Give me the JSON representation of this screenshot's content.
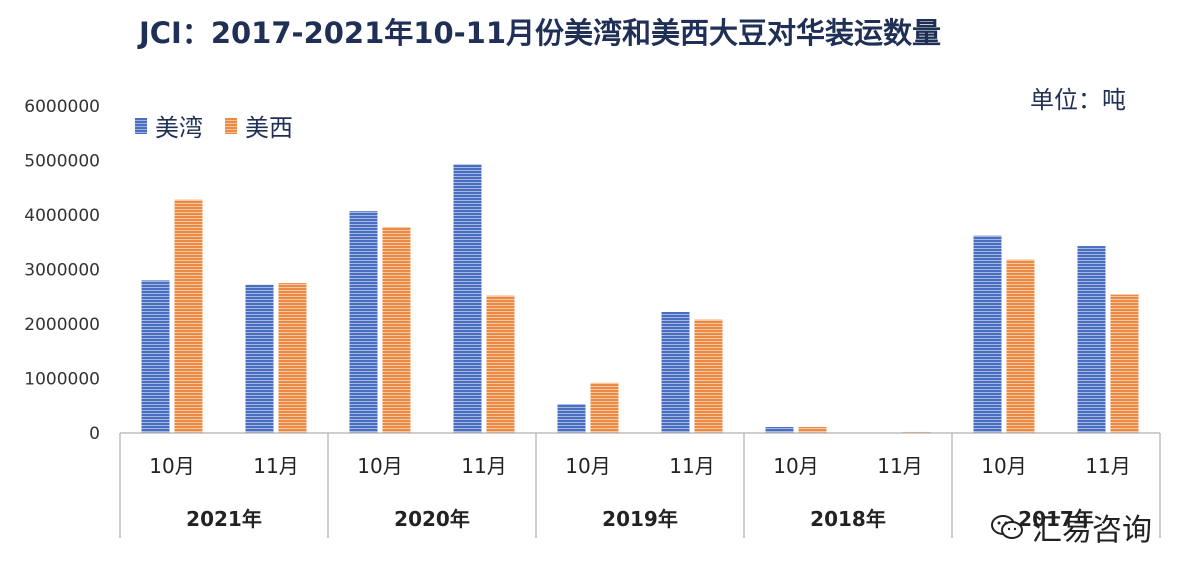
{
  "chart_data": {
    "type": "bar",
    "title": "JCI：2017-2021年10-11月份美湾和美西大豆对华装运数量",
    "unit": "单位：吨",
    "yticks": [
      "6000000",
      "5000000",
      "4000000",
      "3000000",
      "2000000",
      "1000000",
      "0"
    ],
    "ylim": [
      0,
      6000000
    ],
    "groups": [
      {
        "label": "2021年",
        "categories": [
          "10月",
          "11月"
        ]
      },
      {
        "label": "2020年",
        "categories": [
          "10月",
          "11月"
        ]
      },
      {
        "label": "2019年",
        "categories": [
          "10月",
          "11月"
        ]
      },
      {
        "label": "2018年",
        "categories": [
          "10月",
          "11月"
        ]
      },
      {
        "label": "2017年",
        "categories": [
          "10月",
          "11月"
        ]
      }
    ],
    "series": [
      {
        "name": "美湾",
        "color": "#4a6fc0",
        "values": [
          2800000,
          2720000,
          4070000,
          4930000,
          530000,
          2220000,
          110000,
          0,
          3620000,
          3430000
        ]
      },
      {
        "name": "美西",
        "color": "#ea8a45",
        "values": [
          4280000,
          2750000,
          3780000,
          2520000,
          920000,
          2080000,
          110000,
          20000,
          3180000,
          2540000
        ]
      }
    ],
    "legend_position": "top-left",
    "grid": false
  },
  "watermark": {
    "text": "汇易咨询",
    "icon": "wechat-icon"
  }
}
